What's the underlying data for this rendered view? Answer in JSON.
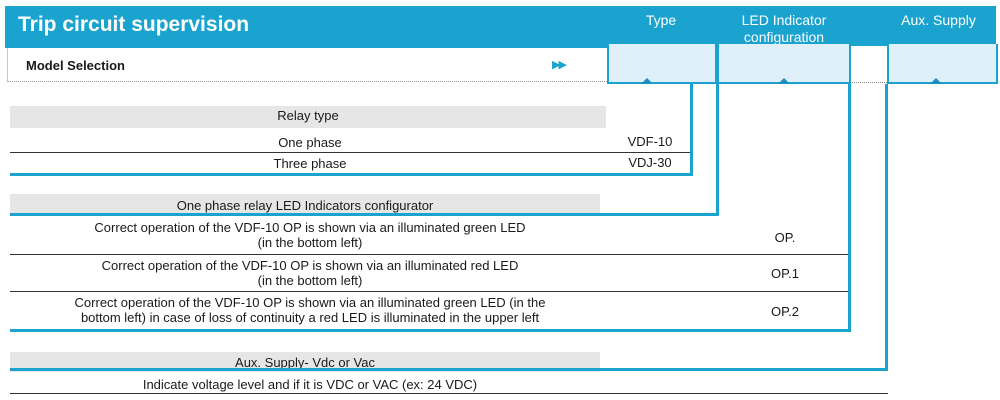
{
  "header": {
    "title": "Trip circuit supervision",
    "col_type": "Type",
    "col_led": "LED Indicator configuration",
    "col_aux": "Aux. Supply"
  },
  "model_selection": "Model Selection",
  "arrows": "▶▶",
  "relay": {
    "heading": "Relay type",
    "rows": [
      {
        "label": "One phase",
        "code": "VDF-10"
      },
      {
        "label": "Three phase",
        "code": "VDJ-30"
      }
    ]
  },
  "led": {
    "heading": "One phase relay LED Indicators configurator",
    "rows": [
      {
        "text": "Correct operation of the VDF-10 OP is shown via an illuminated green LED\n(in the bottom left)",
        "code": "OP."
      },
      {
        "text": "Correct operation of the VDF-10 OP is shown via an illuminated red  LED\n(in the bottom left)",
        "code": "OP.1"
      },
      {
        "text": "Correct operation of the VDF-10 OP is shown via an illuminated green  LED (in the\nbottom left) in case of loss of continuity a red LED is illuminated  in the upper left",
        "code": "OP.2"
      }
    ]
  },
  "aux": {
    "heading": "Aux. Supply- Vdc or Vac",
    "text": "Indicate voltage level and if it is VDC or VAC (ex: 24 VDC)"
  },
  "colors": {
    "accent": "#1aa3cf",
    "box_fill": "#dff0fa",
    "grey_band": "#e6e6e6"
  }
}
